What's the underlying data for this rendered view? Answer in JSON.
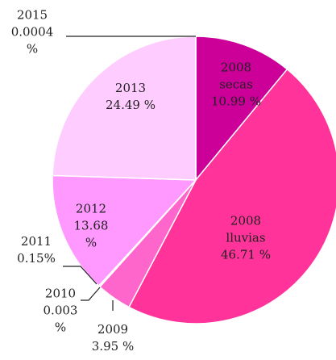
{
  "chart_data": {
    "type": "pie",
    "categories": [
      "2008 secas",
      "2008 lluvias",
      "2009",
      "2010",
      "2011",
      "2012",
      "2013",
      "2015"
    ],
    "values": [
      10.99,
      46.71,
      3.95,
      0.003,
      0.15,
      13.68,
      24.49,
      0.0004
    ],
    "value_labels": [
      "10.99 %",
      "46.71 %",
      "3.95 %",
      "0.003 %",
      "0.15%",
      "13.68 %",
      "24.49 %",
      "0.0004 %"
    ],
    "colors": [
      "#cc0099",
      "#ff3399",
      "#ff66cc",
      "#ff80dd",
      "#ff99ee",
      "#ff99ff",
      "#ffccff",
      "#ffe0ff"
    ]
  }
}
